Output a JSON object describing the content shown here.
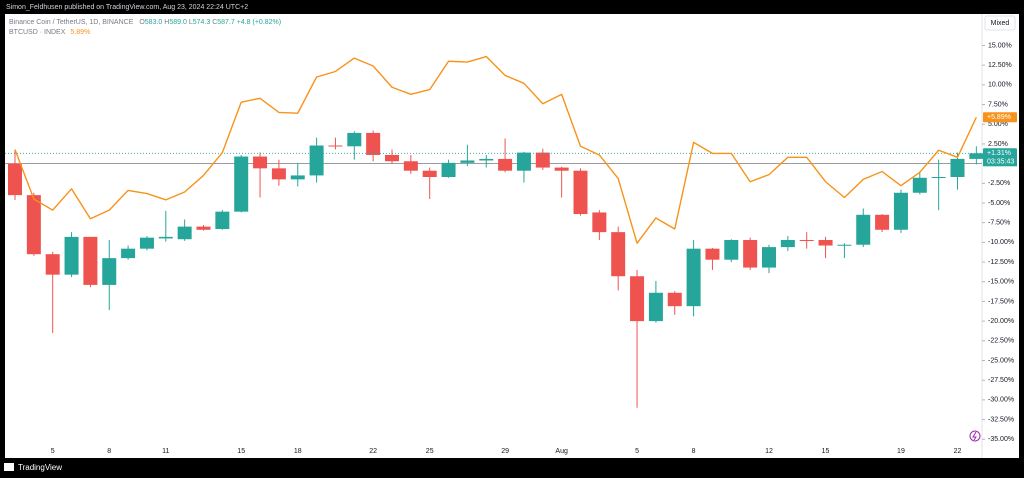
{
  "header": {
    "publisher": "Simon_Feldhusen published on TradingView.com, Aug 23, 2024 22:24 UTC+2",
    "mode_button": "Mixed",
    "footer_logo": "TradingView"
  },
  "chart_data": {
    "type": "candlestick",
    "categories": [
      null,
      null,
      "5",
      null,
      null,
      "8",
      null,
      null,
      "11",
      null,
      null,
      null,
      "15",
      null,
      null,
      "18",
      null,
      null,
      null,
      "22",
      null,
      null,
      "25",
      null,
      null,
      null,
      "29",
      null,
      null,
      "Aug",
      null,
      null,
      null,
      "5",
      null,
      null,
      "8",
      null,
      null,
      null,
      "12",
      null,
      null,
      "15",
      null,
      null,
      null,
      "19",
      null,
      null,
      "22",
      null
    ],
    "ylim": [
      -37,
      19
    ],
    "yticks": [
      {
        "value": 15,
        "label": "15.00%"
      },
      {
        "value": 12.5,
        "label": "12.50%"
      },
      {
        "value": 10,
        "label": "10.00%"
      },
      {
        "value": 7.5,
        "label": "7.50%"
      },
      {
        "value": 5,
        "label": "5.00%"
      },
      {
        "value": 2.5,
        "label": "2.50%"
      },
      {
        "value": -2.5,
        "label": "-2.50%"
      },
      {
        "value": -5,
        "label": "-5.00%"
      },
      {
        "value": -7.5,
        "label": "-7.50%"
      },
      {
        "value": -10,
        "label": "-10.00%"
      },
      {
        "value": -12.5,
        "label": "-12.50%"
      },
      {
        "value": -15,
        "label": "-15.00%"
      },
      {
        "value": -17.5,
        "label": "-17.50%"
      },
      {
        "value": -20,
        "label": "-20.00%"
      },
      {
        "value": -22.5,
        "label": "-22.50%"
      },
      {
        "value": -25,
        "label": "-25.00%"
      },
      {
        "value": -27.5,
        "label": "-27.50%"
      },
      {
        "value": -30,
        "label": "-30.00%"
      },
      {
        "value": -32.5,
        "label": "-32.50%"
      },
      {
        "value": -35,
        "label": "-35.00%"
      }
    ],
    "grid": false,
    "baseline": 0,
    "series": [
      {
        "name": "Binance Coin / TetherUS, 1D, BINANCE",
        "type": "candlestick",
        "up_color": "#26a69a",
        "down_color": "#ef5350",
        "legend": {
          "ohlc": [
            [
              "O",
              "583.0"
            ],
            [
              "H",
              "589.0"
            ],
            [
              "L",
              "574.3"
            ],
            [
              "C",
              "587.7"
            ]
          ],
          "change": "+4.8 (+0.82%)"
        },
        "last_value_label": "+1.31%",
        "countdown": "03:35:43",
        "open": [
          0,
          -4,
          -11.5,
          -14.1,
          -9.3,
          -15.4,
          -12,
          -10.8,
          -9.5,
          -9.6,
          -8.0,
          -8.3,
          -6.1,
          0.9,
          -0.6,
          -2.0,
          -1.5,
          2.3,
          2.2,
          3.9,
          1.1,
          0.3,
          -0.9,
          -1.7,
          0.1,
          0.4,
          0.6,
          -0.9,
          1.4,
          -0.5,
          -0.9,
          -6.2,
          -8.7,
          -14.3,
          -20,
          -16.4,
          -18.1,
          -10.8,
          -12.2,
          -9.7,
          -13.2,
          -10.6,
          -9.7,
          -9.7,
          -10.4,
          -10.3,
          -6.5,
          -8.4,
          -3.7,
          -1.8,
          -1.7,
          0.6
        ],
        "high": [
          1.8,
          -3.7,
          -11.2,
          -8.7,
          -9.3,
          -9.7,
          -10.4,
          -9.2,
          -6.0,
          -7.1,
          -7.8,
          -5.9,
          1.1,
          1.4,
          0.5,
          0.1,
          3.3,
          3.3,
          4.1,
          4.2,
          1.8,
          1.1,
          -0.5,
          0.5,
          2.4,
          1.1,
          3.2,
          1.5,
          1.9,
          -0.4,
          -0.6,
          -5.9,
          -8.0,
          -13.5,
          -14.9,
          -16.2,
          -9.7,
          -10.7,
          -9.6,
          -9.4,
          -10.3,
          -9.2,
          -8.7,
          -9.3,
          -10.1,
          -5.7,
          -6.4,
          -3.3,
          -1.1,
          0.5,
          1.4,
          2.2
        ],
        "low": [
          -4.6,
          -11.7,
          -21.5,
          -14.4,
          -15.7,
          -18.6,
          -12.2,
          -11.0,
          -9.9,
          -9.8,
          -8.5,
          -8.4,
          -6.2,
          -4.3,
          -2.8,
          -2.9,
          -2.4,
          1.8,
          0.5,
          0.3,
          0,
          -1.3,
          -4.5,
          -1.8,
          -0.3,
          -0.5,
          -1.1,
          -2.4,
          -0.8,
          -4.3,
          -6.6,
          -9.7,
          -16.1,
          -31.0,
          -20.2,
          -19.2,
          -19.4,
          -13.5,
          -12.5,
          -13.5,
          -13.9,
          -11.1,
          -10.8,
          -12.0,
          -12.0,
          -10.6,
          -8.7,
          -8.8,
          -3.9,
          -5.9,
          -3.3,
          -0.1
        ],
        "close": [
          -4.0,
          -11.5,
          -14.1,
          -9.3,
          -15.4,
          -12,
          -10.8,
          -9.4,
          -9.3,
          -8.0,
          -8.4,
          -6.1,
          0.9,
          -0.6,
          -2.0,
          -1.5,
          2.3,
          2.2,
          3.9,
          1.1,
          0.3,
          -0.9,
          -1.7,
          0.1,
          0.4,
          0.6,
          -0.9,
          1.4,
          -0.5,
          -0.9,
          -6.4,
          -8.7,
          -14.3,
          -20,
          -16.4,
          -18.1,
          -10.8,
          -12.2,
          -9.7,
          -13.2,
          -10.6,
          -9.7,
          -9.8,
          -10.4,
          -10.3,
          -6.5,
          -8.4,
          -3.7,
          -1.8,
          -1.7,
          0.6,
          1.31
        ]
      },
      {
        "name": "BTCUSD · INDEX",
        "type": "line",
        "color": "#f7931a",
        "legend_value": "5.89%",
        "last_value_label": "+5.89%",
        "values": [
          1.8,
          -4.5,
          -5.9,
          -3.2,
          -7.0,
          -5.9,
          -3.4,
          -3.8,
          -4.6,
          -3.6,
          -1.5,
          1.4,
          7.8,
          8.3,
          6.5,
          6.4,
          11.0,
          11.7,
          13.4,
          12.4,
          9.7,
          8.8,
          9.4,
          13.0,
          12.9,
          13.6,
          11.2,
          10.2,
          7.6,
          8.8,
          2.2,
          1.1,
          -1.9,
          -10.1,
          -6.9,
          -8.3,
          2.7,
          1.3,
          1.3,
          -2.3,
          -1.4,
          0.8,
          0.8,
          -2.3,
          -4.3,
          -2.0,
          -1.0,
          -2.8,
          -1.1,
          1.7,
          0.8,
          5.89
        ]
      }
    ]
  }
}
